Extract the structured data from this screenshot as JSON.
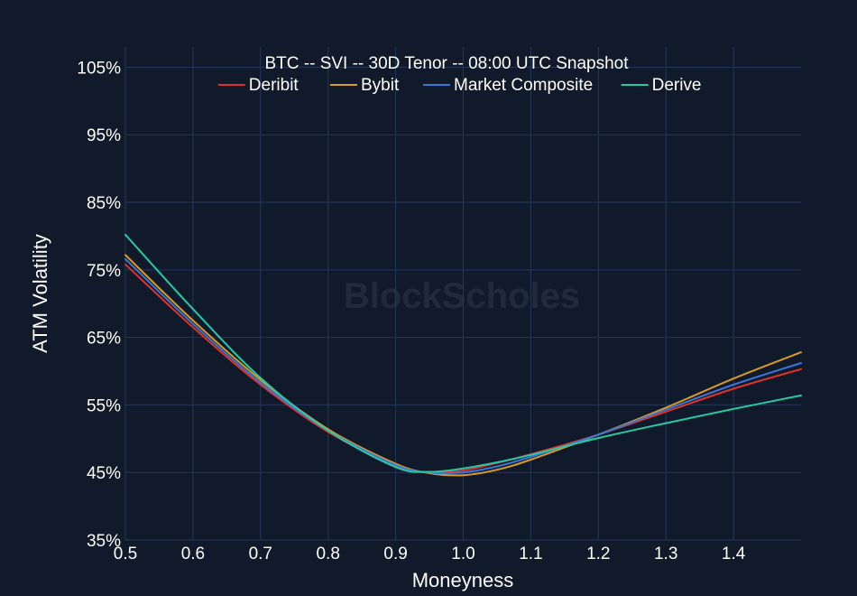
{
  "chart_data": {
    "type": "line",
    "title": "BTC -- SVI -- 30D Tenor -- 08:00 UTC Snapshot",
    "xlabel": "Moneyness",
    "ylabel": "ATM Volatility",
    "watermark": "BlockScholes",
    "xlim": [
      0.5,
      1.5
    ],
    "ylim": [
      35,
      108
    ],
    "x_ticks": [
      0.5,
      0.6,
      0.7,
      0.8,
      0.9,
      1.0,
      1.1,
      1.2,
      1.3,
      1.4
    ],
    "x_tick_labels": [
      "0.5",
      "0.6",
      "0.7",
      "0.8",
      "0.9",
      "1.0",
      "1.1",
      "1.2",
      "1.3",
      "1.4"
    ],
    "y_ticks": [
      35,
      45,
      55,
      65,
      75,
      85,
      95,
      105
    ],
    "y_tick_labels": [
      "35%",
      "45%",
      "55%",
      "65%",
      "75%",
      "85%",
      "95%",
      "105%"
    ],
    "grid": true,
    "legend_position": "top-center",
    "x": [
      0.5,
      0.6,
      0.7,
      0.8,
      0.9,
      0.95,
      1.0,
      1.05,
      1.1,
      1.2,
      1.3,
      1.4,
      1.5
    ],
    "series": [
      {
        "name": "Deribit",
        "color": "#e0322b",
        "values": [
          75.8,
          66.5,
          58.0,
          51.0,
          46.0,
          45.0,
          45.3,
          46.4,
          47.7,
          50.6,
          54.0,
          57.4,
          60.3
        ]
      },
      {
        "name": "Bybit",
        "color": "#d99a26",
        "values": [
          77.2,
          67.5,
          58.7,
          51.4,
          46.3,
          44.9,
          44.6,
          45.4,
          46.9,
          50.6,
          54.6,
          58.9,
          62.8
        ]
      },
      {
        "name": "Market Composite",
        "color": "#3a78d8",
        "values": [
          76.6,
          67.0,
          58.3,
          51.2,
          46.1,
          45.0,
          45.0,
          45.9,
          47.3,
          50.6,
          54.3,
          58.0,
          61.2
        ]
      },
      {
        "name": "Derive",
        "color": "#26c9a6",
        "values": [
          80.2,
          69.2,
          59.0,
          51.2,
          45.8,
          45.1,
          45.6,
          46.5,
          47.6,
          50.1,
          52.3,
          54.4,
          56.4
        ]
      }
    ]
  }
}
